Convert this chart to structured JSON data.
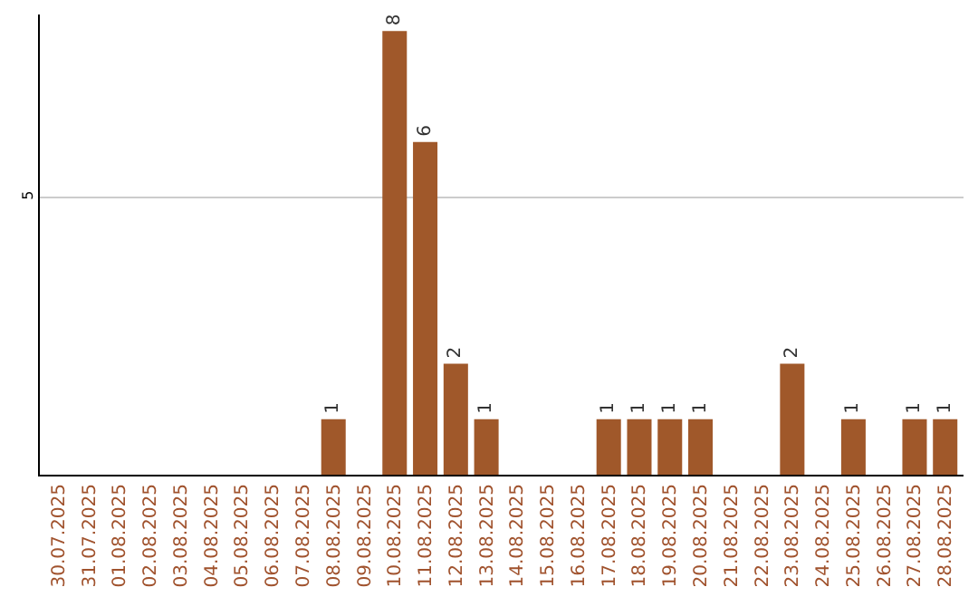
{
  "chart_data": {
    "type": "bar",
    "categories": [
      "30.07.2025",
      "31.07.2025",
      "01.08.2025",
      "02.08.2025",
      "03.08.2025",
      "04.08.2025",
      "05.08.2025",
      "06.08.2025",
      "07.08.2025",
      "08.08.2025",
      "09.08.2025",
      "10.08.2025",
      "11.08.2025",
      "12.08.2025",
      "13.08.2025",
      "14.08.2025",
      "15.08.2025",
      "16.08.2025",
      "17.08.2025",
      "18.08.2025",
      "19.08.2025",
      "20.08.2025",
      "21.08.2025",
      "22.08.2025",
      "23.08.2025",
      "24.08.2025",
      "25.08.2025",
      "26.08.2025",
      "27.08.2025",
      "28.08.2025"
    ],
    "values": [
      0,
      0,
      0,
      0,
      0,
      0,
      0,
      0,
      0,
      1,
      0,
      8,
      6,
      2,
      1,
      0,
      0,
      0,
      1,
      1,
      1,
      1,
      0,
      0,
      2,
      0,
      1,
      0,
      1,
      1
    ],
    "value_labels": [
      null,
      null,
      null,
      null,
      null,
      null,
      null,
      null,
      null,
      "1",
      null,
      "8",
      "6",
      "2",
      "1",
      null,
      null,
      null,
      "1",
      "1",
      "1",
      "1",
      null,
      null,
      "2",
      null,
      "1",
      null,
      "1",
      "1"
    ],
    "color": "#a0582a",
    "ylim": [
      0,
      8.3
    ],
    "yticks": [
      5
    ],
    "grid": "y",
    "legend": false
  }
}
